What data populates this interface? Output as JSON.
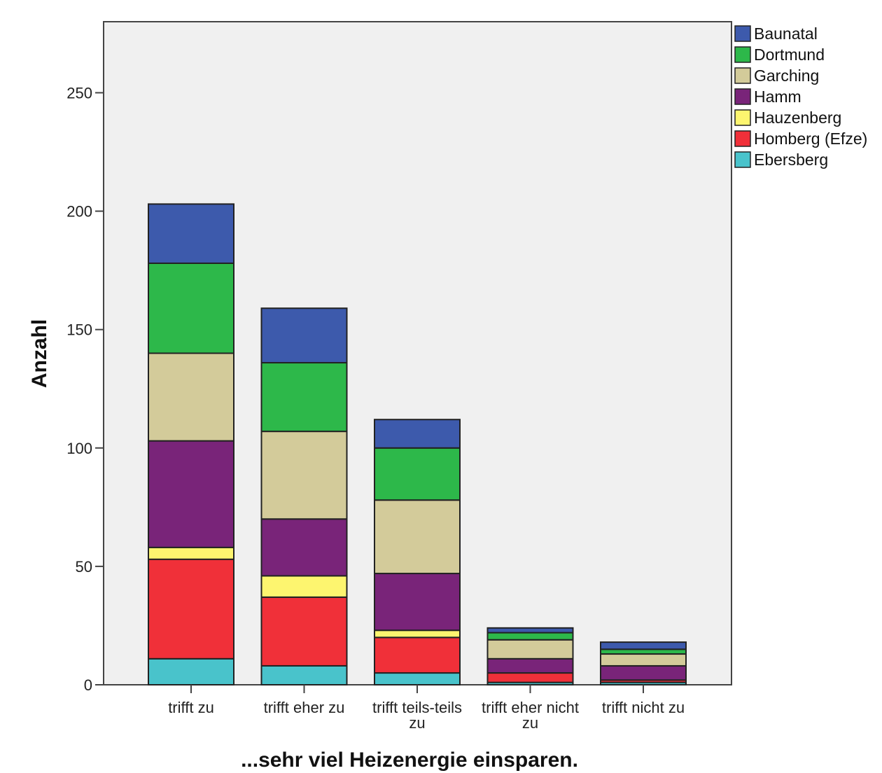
{
  "chart_data": {
    "type": "bar",
    "stacked": true,
    "title": "",
    "xlabel": "...sehr viel Heizenergie einsparen.",
    "ylabel": "Anzahl",
    "ylim": [
      0,
      280
    ],
    "yticks": [
      0,
      50,
      100,
      150,
      200,
      250
    ],
    "grid": false,
    "legend_position": "right",
    "categories": [
      [
        "trifft zu"
      ],
      [
        "trifft eher zu"
      ],
      [
        "trifft teils-teils",
        "zu"
      ],
      [
        "trifft eher nicht",
        "zu"
      ],
      [
        "trifft nicht zu"
      ]
    ],
    "series": [
      {
        "name": "Ebersberg",
        "color": "#49c3cb",
        "values": [
          11,
          8,
          5,
          1,
          1
        ]
      },
      {
        "name": "Homberg (Efze)",
        "color": "#f03039",
        "values": [
          42,
          29,
          15,
          4,
          1
        ]
      },
      {
        "name": "Hauzenberg",
        "color": "#fdf56f",
        "values": [
          5,
          9,
          3,
          0,
          0
        ]
      },
      {
        "name": "Hamm",
        "color": "#792479",
        "values": [
          45,
          24,
          24,
          6,
          6
        ]
      },
      {
        "name": "Garching",
        "color": "#d3cb9a",
        "values": [
          37,
          37,
          31,
          8,
          5
        ]
      },
      {
        "name": "Dortmund",
        "color": "#2db84a",
        "values": [
          38,
          29,
          22,
          3,
          2
        ]
      },
      {
        "name": "Baunatal",
        "color": "#3d5aac",
        "values": [
          25,
          23,
          12,
          2,
          3
        ]
      }
    ],
    "legend_order": [
      "Baunatal",
      "Dortmund",
      "Garching",
      "Hamm",
      "Hauzenberg",
      "Homberg (Efze)",
      "Ebersberg"
    ]
  }
}
